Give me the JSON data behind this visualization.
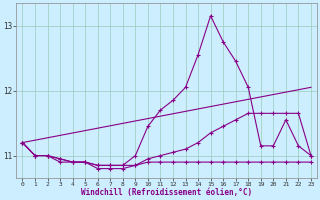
{
  "xlabel": "Windchill (Refroidissement éolien,°C)",
  "ylabel": "",
  "bg_color": "#cceeff",
  "line_color": "#880088",
  "grid_color": "#99ccbb",
  "ylim": [
    10.65,
    13.35
  ],
  "xlim": [
    -0.5,
    23.5
  ],
  "yticks": [
    11,
    12,
    13
  ],
  "xticks": [
    0,
    1,
    2,
    3,
    4,
    5,
    6,
    7,
    8,
    9,
    10,
    11,
    12,
    13,
    14,
    15,
    16,
    17,
    18,
    19,
    20,
    21,
    22,
    23
  ],
  "series": [
    {
      "x": [
        0,
        1,
        2,
        3,
        4,
        5,
        6,
        7,
        8,
        9,
        10,
        11,
        12,
        13,
        14,
        15,
        16,
        17,
        18,
        19,
        20,
        21,
        22,
        23
      ],
      "y": [
        11.2,
        11.0,
        11.0,
        10.95,
        10.9,
        10.9,
        10.85,
        10.85,
        10.85,
        11.0,
        11.45,
        11.7,
        11.85,
        12.05,
        12.55,
        13.15,
        12.75,
        12.45,
        12.05,
        11.15,
        11.15,
        11.55,
        11.15,
        11.0
      ]
    },
    {
      "x": [
        0,
        1,
        2,
        3,
        4,
        5,
        6,
        7,
        8,
        9,
        10,
        11,
        12,
        13,
        14,
        15,
        16,
        17,
        18,
        19,
        20,
        21,
        22,
        23
      ],
      "y": [
        11.2,
        11.0,
        11.0,
        10.95,
        10.9,
        10.9,
        10.85,
        10.85,
        10.85,
        10.85,
        10.95,
        11.0,
        11.05,
        11.1,
        11.2,
        11.35,
        11.45,
        11.55,
        11.65,
        11.65,
        11.65,
        11.65,
        11.65,
        11.0
      ]
    },
    {
      "x": [
        0,
        1,
        2,
        3,
        4,
        5,
        6,
        7,
        8,
        9,
        10,
        11,
        12,
        13,
        14,
        15,
        16,
        17,
        18,
        19,
        20,
        21,
        22,
        23
      ],
      "y": [
        11.2,
        11.0,
        11.0,
        10.9,
        10.9,
        10.9,
        10.8,
        10.8,
        10.8,
        10.85,
        10.9,
        10.9,
        10.9,
        10.9,
        10.9,
        10.9,
        10.9,
        10.9,
        10.9,
        10.9,
        10.9,
        10.9,
        10.9,
        10.9
      ]
    },
    {
      "x": [
        0,
        23
      ],
      "y": [
        11.2,
        12.05
      ],
      "no_marker": true
    }
  ]
}
